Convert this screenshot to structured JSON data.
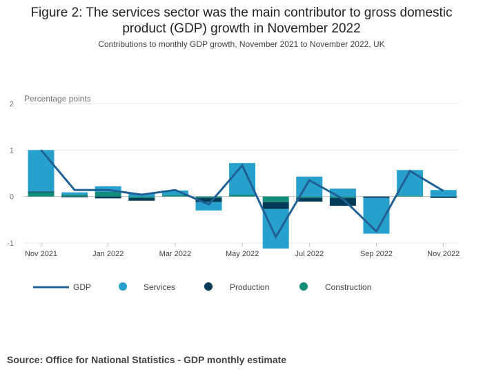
{
  "title": "Figure 2: The services sector was the main contributor to gross domestic product (GDP) growth in November 2022",
  "subtitle": "Contributions to monthly GDP growth, November 2021 to November 2022, UK",
  "source": "Source: Office for National Statistics - GDP monthly estimate",
  "colors": {
    "gdp": "#206095",
    "services": "#27a0cc",
    "production": "#003c57",
    "construction": "#118c7b"
  },
  "chart_data": {
    "type": "bar",
    "stacked": true,
    "ylabel": "Percentage points",
    "ylim": [
      -1,
      2
    ],
    "yticks": [
      "2",
      "1",
      "0",
      "-1"
    ],
    "grid": true,
    "legend_position": "bottom",
    "categories": [
      "Nov 2021",
      "Dec 2021",
      "Jan 2022",
      "Feb 2022",
      "Mar 2022",
      "Apr 2022",
      "May 2022",
      "Jun 2022",
      "Jul 2022",
      "Aug 2022",
      "Sep 2022",
      "Oct 2022",
      "Nov 2022"
    ],
    "xtick_labels": [
      "Nov 2021",
      "Jan 2022",
      "Mar 2022",
      "May 2022",
      "Jul 2022",
      "Sep 2022",
      "Nov 2022"
    ],
    "series": [
      {
        "name": "Services",
        "values": [
          0.89,
          0.05,
          0.12,
          0.06,
          0.1,
          -0.18,
          0.68,
          -0.85,
          0.43,
          0.17,
          -0.77,
          0.55,
          0.14
        ]
      },
      {
        "name": "Production",
        "values": [
          0.02,
          -0.01,
          -0.04,
          -0.06,
          0.0,
          -0.09,
          0.0,
          -0.15,
          -0.08,
          -0.17,
          -0.03,
          0.0,
          -0.03
        ]
      },
      {
        "name": "Construction",
        "values": [
          0.09,
          0.04,
          0.1,
          -0.03,
          0.03,
          -0.03,
          0.04,
          -0.12,
          -0.03,
          -0.03,
          0.0,
          0.02,
          0.0
        ]
      }
    ],
    "line": {
      "name": "GDP",
      "values": [
        1.0,
        0.14,
        0.14,
        0.04,
        0.14,
        -0.17,
        0.67,
        -0.87,
        0.35,
        -0.05,
        -0.75,
        0.55,
        0.12
      ]
    }
  }
}
